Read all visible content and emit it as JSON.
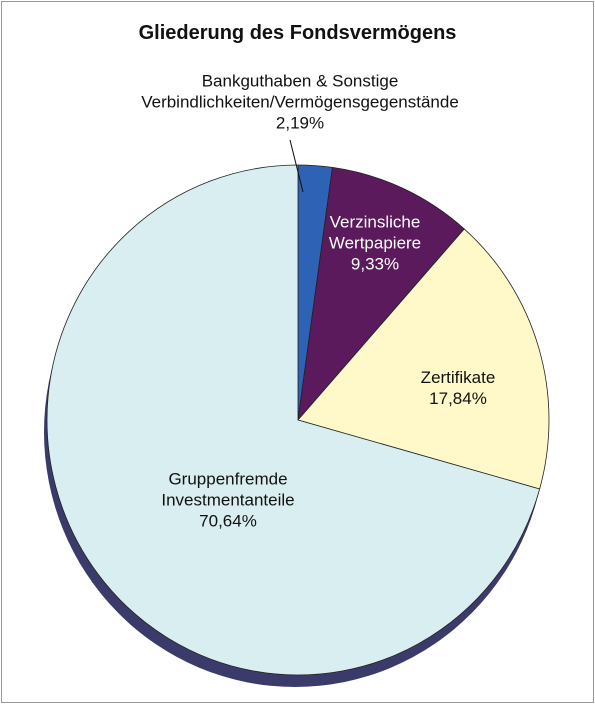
{
  "chart_data": {
    "type": "pie",
    "title": "Gliederung des Fondsvermögens",
    "categories": [
      "Bankguthaben & Sonstige\nVerbindlichkeiten/Vermögensgegenstände",
      "Verzinsliche\nWertpapiere",
      "Zertifikate",
      "Gruppenfremde\nInvestmentanteile"
    ],
    "values": [
      2.19,
      9.33,
      17.84,
      70.64
    ],
    "value_labels": [
      "2,19%",
      "9,33%",
      "17,84%",
      "70,64%"
    ],
    "colors": [
      "#2e62b4",
      "#5a1a5c",
      "#fff8c8",
      "#d9eef0"
    ]
  }
}
